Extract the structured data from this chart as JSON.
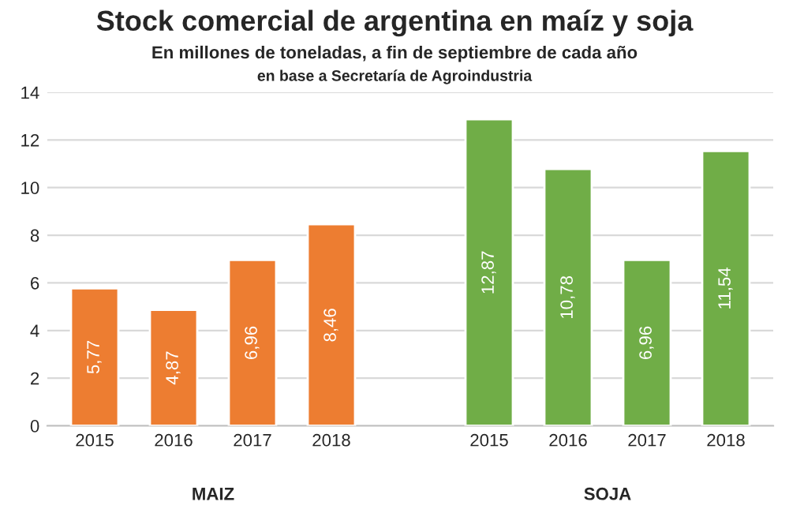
{
  "chart_data": {
    "type": "bar",
    "title": "Stock comercial de argentina en maíz y soja",
    "subtitle": "En millones de toneladas, a fin de septiembre de cada año",
    "annotations": [
      "en base a Secretaría de Agroindustria",
      "MAIZ",
      "SOJA"
    ],
    "categories": [
      "2015",
      "2016",
      "2017",
      "2018",
      null,
      "2015",
      "2016",
      "2017",
      "2018"
    ],
    "values": [
      5.77,
      4.87,
      6.96,
      8.46,
      null,
      12.87,
      10.78,
      6.96,
      11.54
    ],
    "value_labels": [
      "5,77",
      "4,87",
      "6,96",
      "8,46",
      null,
      "12,87",
      "10,78",
      "6,96",
      "11,54"
    ],
    "colors": [
      "#ed7d31",
      "#ed7d31",
      "#ed7d31",
      "#ed7d31",
      null,
      "#70ad47",
      "#70ad47",
      "#70ad47",
      "#70ad47"
    ],
    "ylim": [
      0,
      14
    ],
    "yticks": [
      0,
      2,
      4,
      6,
      8,
      10,
      12,
      14
    ],
    "grid": "y"
  }
}
